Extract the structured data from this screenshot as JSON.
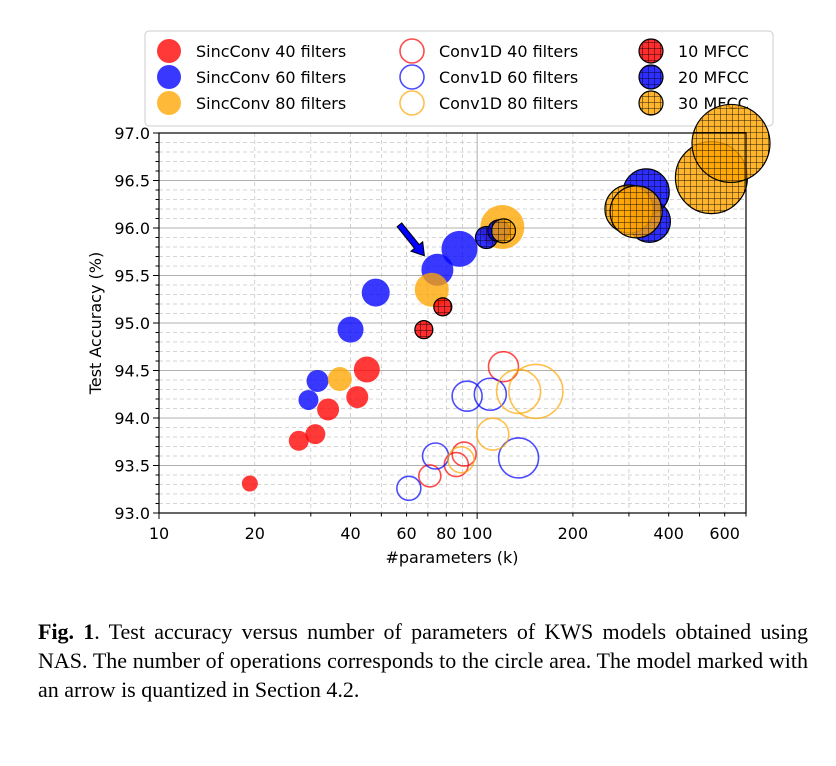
{
  "chart_data": {
    "type": "scatter",
    "xlabel": "#parameters (k)",
    "ylabel": "Test Accuracy (%)",
    "xscale": "log",
    "xlim": [
      10,
      700
    ],
    "ylim": [
      93.0,
      97.0
    ],
    "x_ticks": [
      10,
      20,
      40,
      60,
      80,
      100,
      200,
      400,
      600
    ],
    "y_ticks": [
      "93.0",
      "93.5",
      "94.0",
      "94.5",
      "95.0",
      "95.5",
      "96.0",
      "96.5",
      "97.0"
    ],
    "grid": true,
    "legend_position": "top",
    "colors": {
      "red": "#ff0000",
      "blue": "#0000ff",
      "orange": "#ffa500"
    },
    "legend": [
      {
        "label": "SincConv 40 filters",
        "color": "#ff0000",
        "style": "filled"
      },
      {
        "label": "SincConv 60 filters",
        "color": "#0000ff",
        "style": "filled"
      },
      {
        "label": "SincConv 80 filters",
        "color": "#ffa500",
        "style": "filled"
      },
      {
        "label": "Conv1D 40 filters",
        "color": "#ff0000",
        "style": "hollow"
      },
      {
        "label": "Conv1D 60 filters",
        "color": "#0000ff",
        "style": "hollow"
      },
      {
        "label": "Conv1D 80 filters",
        "color": "#ffa500",
        "style": "hollow"
      },
      {
        "label": "10 MFCC",
        "color": "#ff0000",
        "style": "hatched"
      },
      {
        "label": "20 MFCC",
        "color": "#0000ff",
        "style": "hatched"
      },
      {
        "label": "30 MFCC",
        "color": "#ffa500",
        "style": "hatched"
      }
    ],
    "series": [
      {
        "name": "SincConv 40 filters",
        "color": "#ff0000",
        "style": "filled",
        "points": [
          {
            "x": 19.3,
            "y": 93.31,
            "size": 8
          },
          {
            "x": 27.5,
            "y": 93.76,
            "size": 10
          },
          {
            "x": 31,
            "y": 93.83,
            "size": 10
          },
          {
            "x": 34,
            "y": 94.09,
            "size": 11
          },
          {
            "x": 42,
            "y": 94.22,
            "size": 11
          },
          {
            "x": 45,
            "y": 94.51,
            "size": 13
          }
        ]
      },
      {
        "name": "SincConv 60 filters",
        "color": "#0000ff",
        "style": "filled",
        "points": [
          {
            "x": 29.5,
            "y": 94.19,
            "size": 10
          },
          {
            "x": 31.5,
            "y": 94.39,
            "size": 11
          },
          {
            "x": 40,
            "y": 94.93,
            "size": 13
          },
          {
            "x": 48,
            "y": 95.32,
            "size": 14
          },
          {
            "x": 75,
            "y": 95.56,
            "size": 16
          },
          {
            "x": 88,
            "y": 95.78,
            "size": 18
          }
        ]
      },
      {
        "name": "SincConv 80 filters",
        "color": "#ffa500",
        "style": "filled",
        "points": [
          {
            "x": 37,
            "y": 94.41,
            "size": 12
          },
          {
            "x": 72,
            "y": 95.35,
            "size": 17
          },
          {
            "x": 120,
            "y": 96.01,
            "size": 22
          }
        ]
      },
      {
        "name": "Conv1D 40 filters",
        "color": "#ff0000",
        "style": "hollow",
        "points": [
          {
            "x": 71,
            "y": 93.39,
            "size": 11
          },
          {
            "x": 86,
            "y": 93.51,
            "size": 12
          },
          {
            "x": 91,
            "y": 93.62,
            "size": 12
          },
          {
            "x": 121,
            "y": 94.54,
            "size": 15
          }
        ]
      },
      {
        "name": "Conv1D 60 filters",
        "color": "#0000ff",
        "style": "hollow",
        "points": [
          {
            "x": 61,
            "y": 93.26,
            "size": 12
          },
          {
            "x": 74,
            "y": 93.6,
            "size": 13
          },
          {
            "x": 93,
            "y": 94.23,
            "size": 15
          },
          {
            "x": 110,
            "y": 94.25,
            "size": 16
          },
          {
            "x": 135,
            "y": 93.58,
            "size": 20
          }
        ]
      },
      {
        "name": "Conv1D 80 filters",
        "color": "#ffa500",
        "style": "hollow",
        "points": [
          {
            "x": 89,
            "y": 93.56,
            "size": 13
          },
          {
            "x": 112,
            "y": 93.83,
            "size": 16
          },
          {
            "x": 135,
            "y": 94.28,
            "size": 22
          },
          {
            "x": 153,
            "y": 94.28,
            "size": 27
          }
        ]
      },
      {
        "name": "10 MFCC",
        "color": "#ff0000",
        "style": "hatched",
        "points": [
          {
            "x": 68,
            "y": 94.93,
            "size": 9
          },
          {
            "x": 78,
            "y": 95.17,
            "size": 9
          }
        ]
      },
      {
        "name": "20 MFCC",
        "color": "#0000ff",
        "style": "hatched",
        "points": [
          {
            "x": 107,
            "y": 95.9,
            "size": 11
          },
          {
            "x": 117,
            "y": 95.97,
            "size": 11
          },
          {
            "x": 348,
            "y": 96.07,
            "size": 21
          },
          {
            "x": 340,
            "y": 96.38,
            "size": 23
          }
        ]
      },
      {
        "name": "30 MFCC",
        "color": "#ffa500",
        "style": "hatched",
        "points": [
          {
            "x": 121,
            "y": 95.97,
            "size": 12
          },
          {
            "x": 300,
            "y": 96.2,
            "size": 24
          },
          {
            "x": 316,
            "y": 96.17,
            "size": 26
          },
          {
            "x": 545,
            "y": 96.53,
            "size": 36
          },
          {
            "x": 628,
            "y": 96.89,
            "size": 39
          }
        ]
      }
    ],
    "annotation": {
      "type": "arrow",
      "color": "#0000ff",
      "points_to": {
        "x": 75,
        "y": 95.56
      }
    }
  },
  "caption": {
    "label": "Fig. 1",
    "text": ". Test accuracy versus number of parameters of KWS models obtained using NAS. The number of operations corresponds to the circle area. The model marked with an arrow is quantized in Section 4.2."
  }
}
